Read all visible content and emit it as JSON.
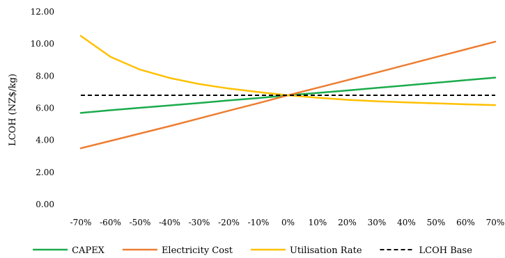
{
  "chart_data": {
    "type": "line",
    "title": "",
    "xlabel": "",
    "ylabel": "LCOH (NZ$/kg)",
    "categories": [
      "-70%",
      "-60%",
      "-50%",
      "-40%",
      "-30%",
      "-20%",
      "-10%",
      "0%",
      "10%",
      "20%",
      "30%",
      "40%",
      "50%",
      "60%",
      "70%"
    ],
    "yticks": [
      "0.00",
      "2.00",
      "4.00",
      "6.00",
      "8.00",
      "10.00",
      "12.00"
    ],
    "ylim": [
      0,
      12
    ],
    "grid": false,
    "legend_position": "bottom",
    "series": [
      {
        "name": "CAPEX",
        "color": "#1aab4b",
        "dash": "solid",
        "values": [
          5.7,
          5.87,
          6.02,
          6.17,
          6.32,
          6.48,
          6.63,
          6.8,
          6.95,
          7.1,
          7.26,
          7.42,
          7.58,
          7.74,
          7.9
        ]
      },
      {
        "name": "Electricity Cost",
        "color": "#ed7d31",
        "dash": "solid",
        "values": [
          3.5,
          3.96,
          4.42,
          4.88,
          5.36,
          5.84,
          6.31,
          6.8,
          7.27,
          7.74,
          8.22,
          8.7,
          9.18,
          9.66,
          10.14
        ]
      },
      {
        "name": "Utilisation Rate",
        "color": "#ffc000",
        "dash": "solid",
        "values": [
          10.5,
          9.2,
          8.4,
          7.88,
          7.5,
          7.22,
          7.0,
          6.8,
          6.65,
          6.52,
          6.43,
          6.36,
          6.3,
          6.24,
          6.19
        ]
      },
      {
        "name": "LCOH Base",
        "color": "#000000",
        "dash": "dashed",
        "values": [
          6.8,
          6.8,
          6.8,
          6.8,
          6.8,
          6.8,
          6.8,
          6.8,
          6.8,
          6.8,
          6.8,
          6.8,
          6.8,
          6.8,
          6.8
        ]
      }
    ]
  }
}
